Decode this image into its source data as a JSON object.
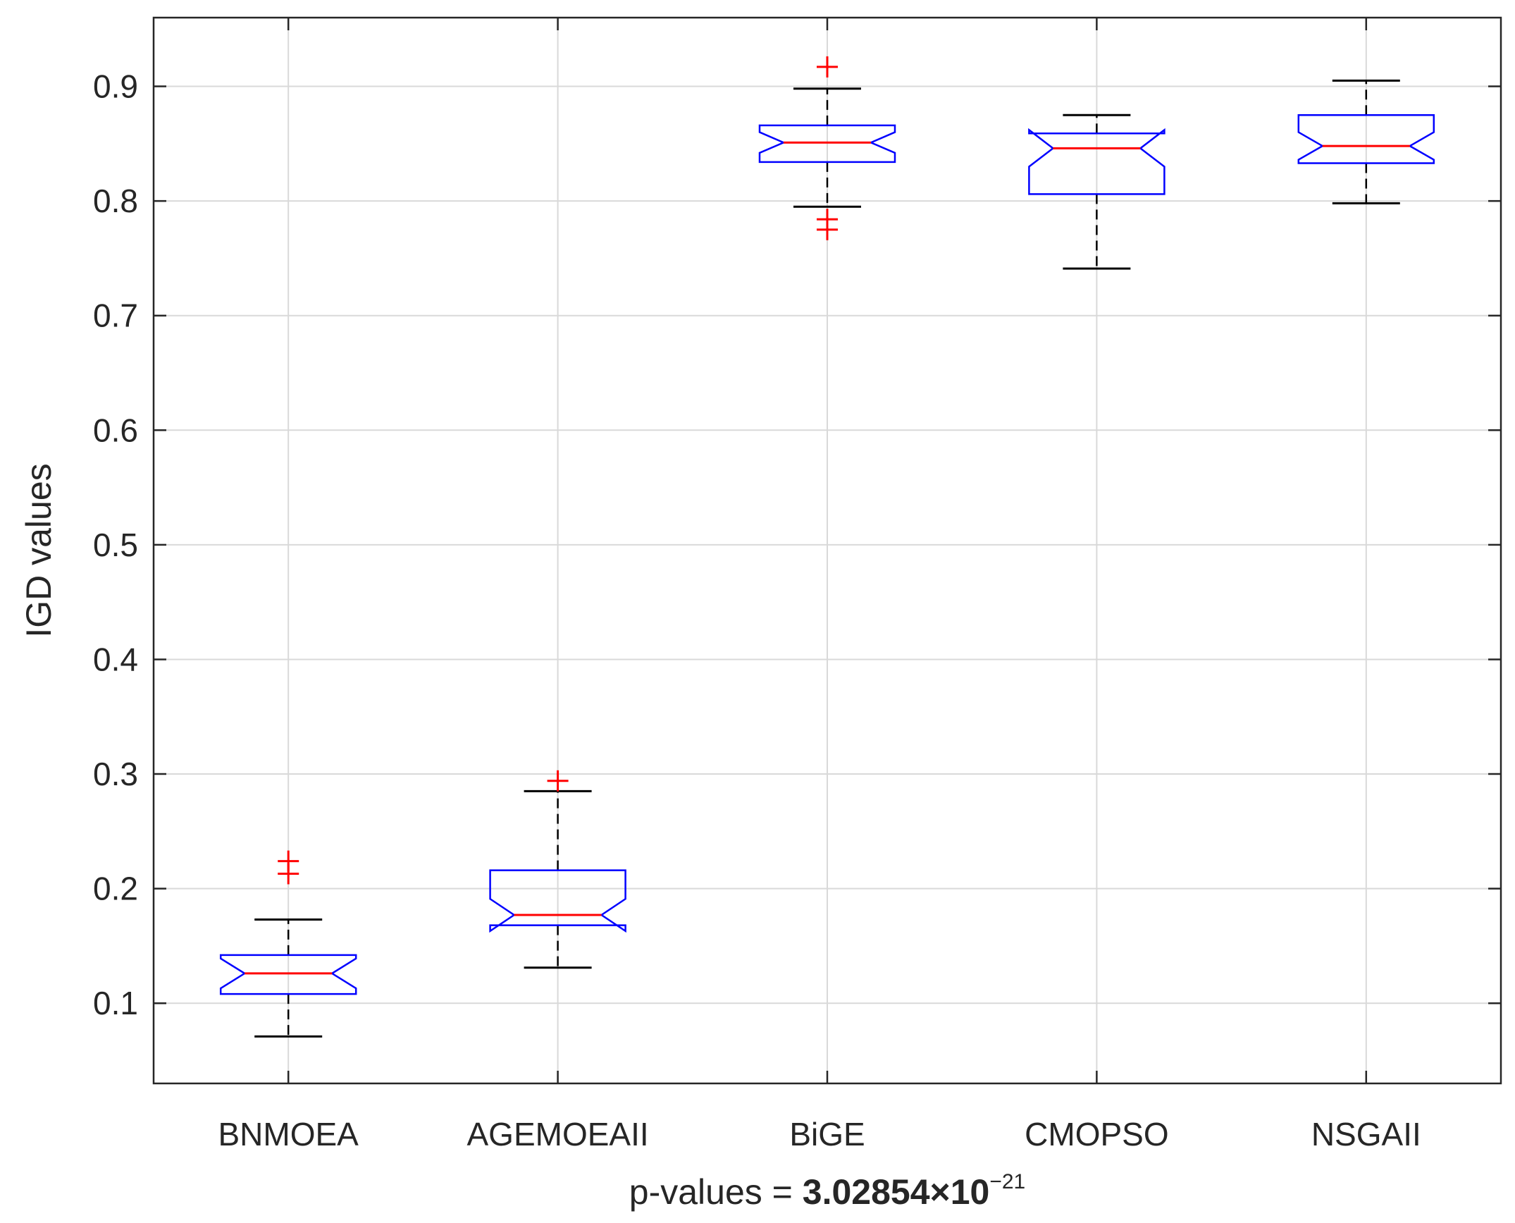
{
  "chart_data": {
    "type": "boxplot",
    "ylabel": "IGD values",
    "xlabel": {
      "prefix": "p-values = ",
      "value": "3.02854×10",
      "exponent": "−21"
    },
    "ylim": [
      0.03,
      0.96
    ],
    "yticks": [
      "0.1",
      "0.2",
      "0.3",
      "0.4",
      "0.5",
      "0.6",
      "0.7",
      "0.8",
      "0.9"
    ],
    "grid": true,
    "categories": [
      "BNMOEA",
      "AGEMOEAII",
      "BiGE",
      "CMOPSO",
      "NSGAII"
    ],
    "boxes": [
      {
        "name": "BNMOEA",
        "whisker_low": 0.071,
        "q1": 0.108,
        "median": 0.126,
        "q3": 0.142,
        "whisker_high": 0.173,
        "notch_low": 0.113,
        "notch_high": 0.139,
        "outliers": [
          0.213,
          0.224
        ]
      },
      {
        "name": "AGEMOEAII",
        "whisker_low": 0.131,
        "q1": 0.168,
        "median": 0.177,
        "q3": 0.216,
        "whisker_high": 0.285,
        "notch_low": 0.163,
        "notch_high": 0.191,
        "outliers": [
          0.294
        ]
      },
      {
        "name": "BiGE",
        "whisker_low": 0.795,
        "q1": 0.834,
        "median": 0.851,
        "q3": 0.866,
        "whisker_high": 0.898,
        "notch_low": 0.842,
        "notch_high": 0.86,
        "outliers": [
          0.775,
          0.784,
          0.917
        ]
      },
      {
        "name": "CMOPSO",
        "whisker_low": 0.741,
        "q1": 0.806,
        "median": 0.846,
        "q3": 0.859,
        "whisker_high": 0.875,
        "notch_low": 0.83,
        "notch_high": 0.862,
        "outliers": []
      },
      {
        "name": "NSGAII",
        "whisker_low": 0.798,
        "q1": 0.833,
        "median": 0.848,
        "q3": 0.875,
        "whisker_high": 0.905,
        "notch_low": 0.836,
        "notch_high": 0.86,
        "outliers": []
      }
    ],
    "colors": {
      "box": "#0000ff",
      "median": "#ff0000",
      "whisker": "#000000",
      "outlier": "#ff0000",
      "grid": "#d9d9d9",
      "axis": "#262626"
    }
  }
}
